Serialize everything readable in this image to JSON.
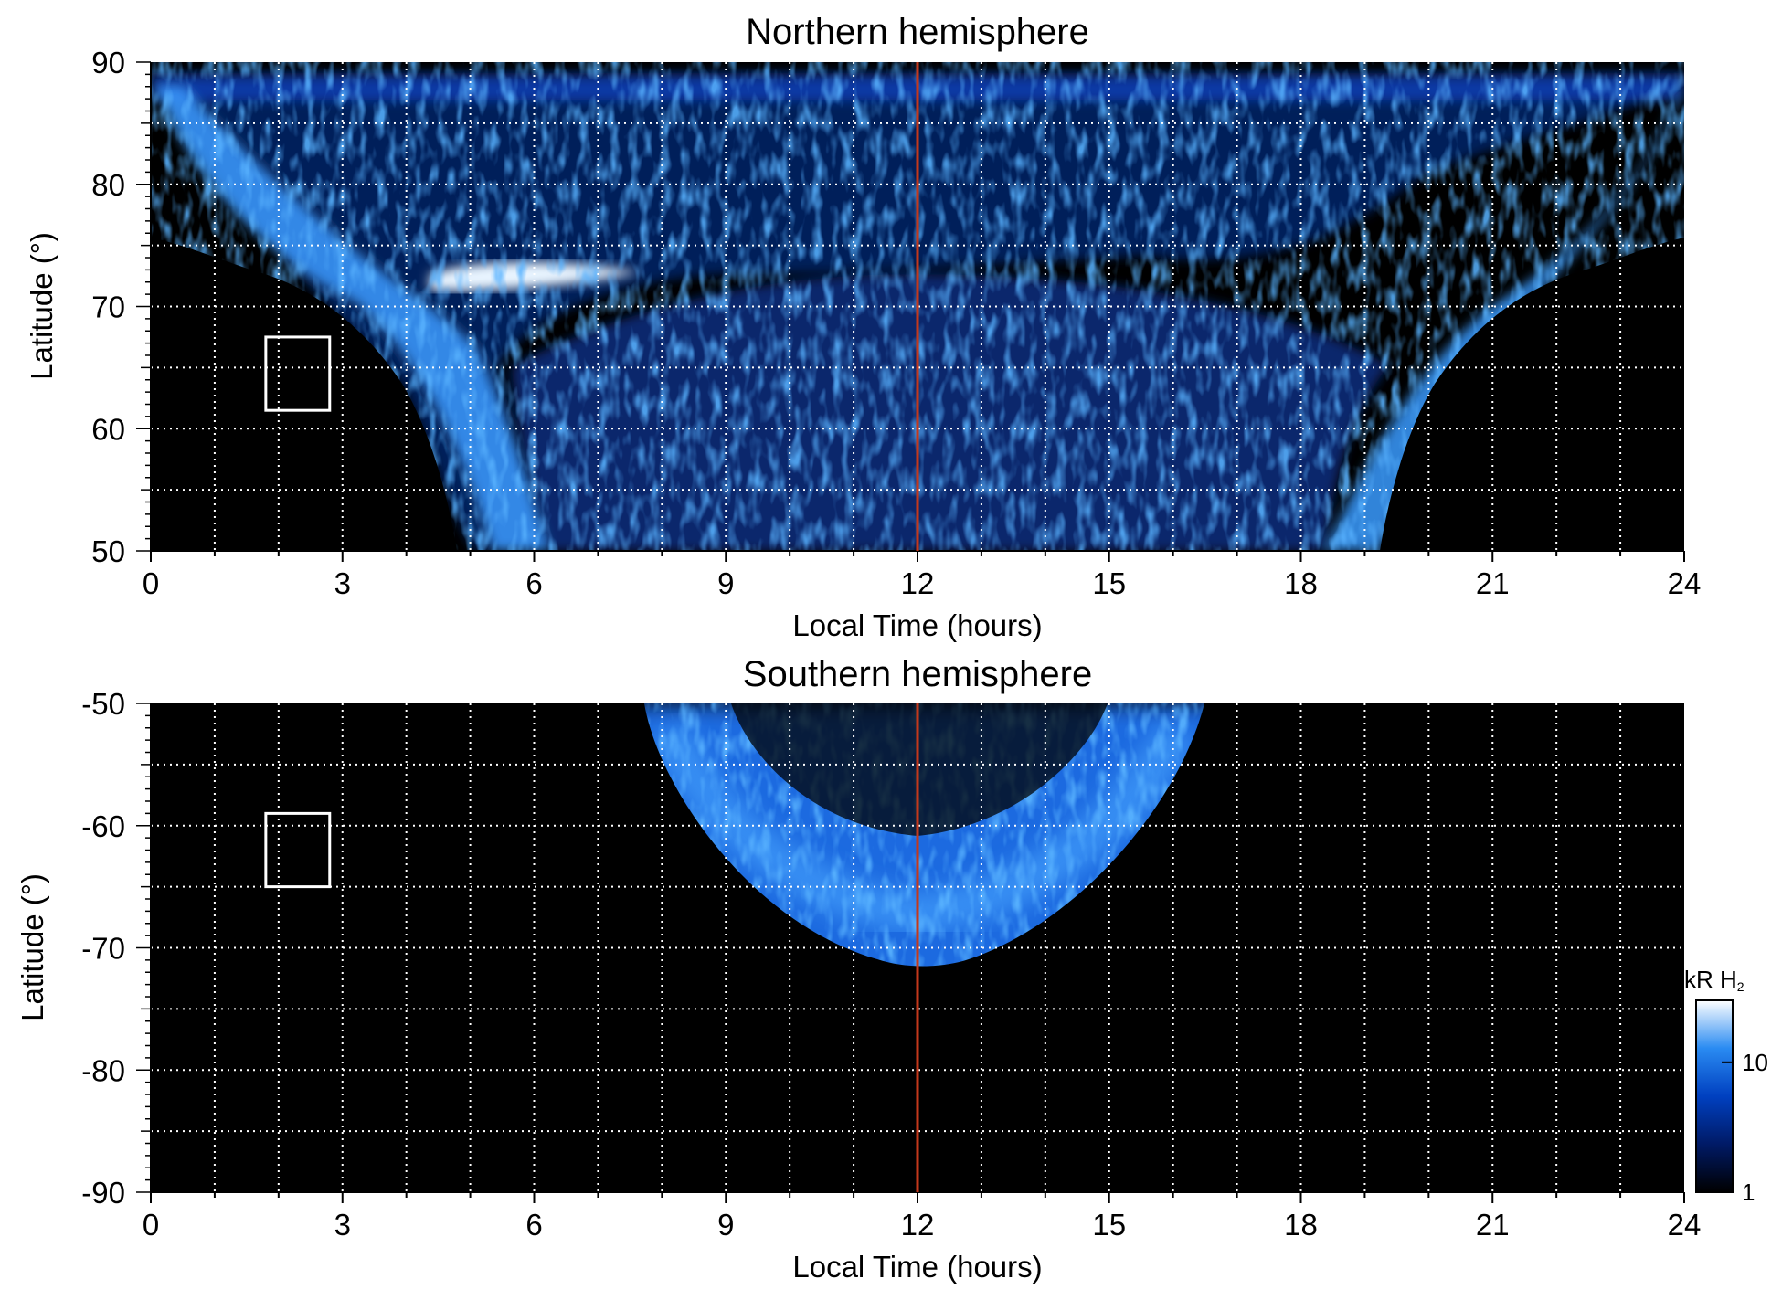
{
  "chart_data": [
    {
      "type": "heatmap",
      "title": "Northern hemisphere",
      "xlabel": "Local Time (hours)",
      "ylabel": "Latitude (°)",
      "xlim": [
        0,
        24
      ],
      "ylim": [
        50,
        90
      ],
      "xticks": [
        "0",
        "3",
        "6",
        "9",
        "12",
        "15",
        "18",
        "21",
        "24"
      ],
      "yticks": [
        "50",
        "60",
        "70",
        "80",
        "90"
      ],
      "grid": true,
      "noon_line_x": 12,
      "marker_box": {
        "x": [
          1.8,
          2.8
        ],
        "y": [
          61.5,
          67.5
        ]
      },
      "background_color": "#000000",
      "noon_line_color": "#c4381b",
      "emission_color": "#2a8bf2"
    },
    {
      "type": "heatmap",
      "title": "Southern hemisphere",
      "xlabel": "Local Time (hours)",
      "ylabel": "Latitude (°)",
      "xlim": [
        0,
        24
      ],
      "ylim": [
        -90,
        -50
      ],
      "xticks": [
        "0",
        "3",
        "6",
        "9",
        "12",
        "15",
        "18",
        "21",
        "24"
      ],
      "yticks": [
        "-90",
        "-80",
        "-70",
        "-60",
        "-50"
      ],
      "grid": true,
      "noon_line_x": 12,
      "marker_box": {
        "x": [
          1.8,
          2.8
        ],
        "y": [
          -65,
          -59
        ]
      },
      "background_color": "#000000",
      "noon_line_color": "#c4381b",
      "emission_color": "#2a8bf2"
    }
  ],
  "colorbar": {
    "label": "kR H",
    "label_sub": "2",
    "ticks": [
      "10",
      "1"
    ],
    "range": [
      1,
      30
    ],
    "scale": "log",
    "colors": [
      "#000000",
      "#001a66",
      "#0040c0",
      "#2a8bf2",
      "#ffffff"
    ]
  }
}
